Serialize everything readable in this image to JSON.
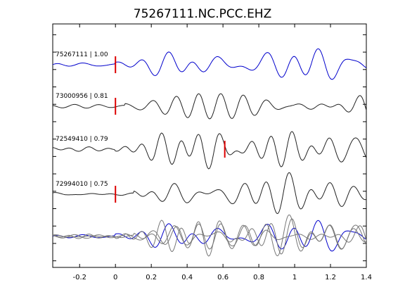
{
  "chart_data": {
    "type": "line",
    "title": "75267111.NC.PCC.EHZ",
    "xlabel": "",
    "ylabel": "",
    "xlim": [
      -0.35,
      1.4
    ],
    "x_ticks": [
      -0.2,
      0,
      0.2,
      0.4,
      0.6,
      0.8,
      1,
      1.2,
      1.4
    ],
    "x_tick_labels": [
      "-0.2",
      "0",
      "0.2",
      "0.4",
      "0.6",
      "0.8",
      "1",
      "1.2",
      "1.4"
    ],
    "y_tick_count": 14,
    "grid": false,
    "legend": "none",
    "series": [
      {
        "label": "75267111 | 1.00",
        "color": "#0000cc",
        "pick_time": 0.0,
        "amp": 1.0,
        "onset": 0.0,
        "freq": 6.3,
        "seed": 1
      },
      {
        "label": "73000956 | 0.81",
        "color": "#222222",
        "pick_time": 0.0,
        "amp": 1.05,
        "onset": 0.05,
        "freq": 7.0,
        "seed": 2
      },
      {
        "label": "72549410 | 0.79",
        "color": "#222222",
        "pick_time": 0.61,
        "amp": 1.05,
        "onset": 0.0,
        "freq": 6.8,
        "seed": 3
      },
      {
        "label": "72994010 | 0.75",
        "color": "#222222",
        "pick_time": 0.0,
        "amp": 0.9,
        "onset": 0.1,
        "freq": 7.2,
        "seed": 4
      }
    ],
    "stack": {
      "colors": [
        "#0000cc",
        "#777777"
      ]
    },
    "pick_color": "#dd0000"
  }
}
